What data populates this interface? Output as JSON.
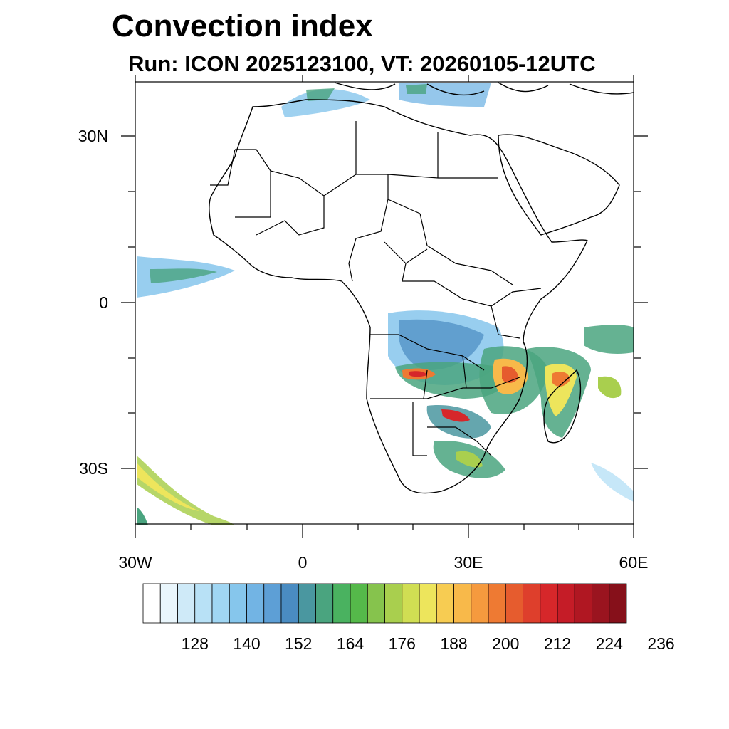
{
  "title": "Convection index",
  "subtitle": "Run: ICON 2025123100,  VT: 20260105-12UTC",
  "map": {
    "lon_range": [
      -30,
      60
    ],
    "lat_range": [
      -40,
      40
    ],
    "x_ticks": [
      {
        "lon": -30,
        "label": "30W"
      },
      {
        "lon": 0,
        "label": "0"
      },
      {
        "lon": 30,
        "label": "30E"
      },
      {
        "lon": 60,
        "label": "60E"
      }
    ],
    "y_ticks": [
      {
        "lat": 30,
        "label": "30N"
      },
      {
        "lat": 0,
        "label": "0"
      },
      {
        "lat": -30,
        "label": "30S"
      }
    ]
  },
  "colorbar": {
    "colors": [
      "#ffffff",
      "#eaf6fc",
      "#cfeaf8",
      "#b8e1f6",
      "#a0d6f3",
      "#86c6ec",
      "#72b4e4",
      "#5d9fd6",
      "#4a8cc2",
      "#4a97a0",
      "#4aa47f",
      "#4ab260",
      "#55b94a",
      "#86c34d",
      "#a9cf4e",
      "#d0de53",
      "#ede55c",
      "#f7cc52",
      "#f8b94a",
      "#f59a3e",
      "#ee7a33",
      "#e65c2e",
      "#de3f2c",
      "#d6272a",
      "#c51c27",
      "#b01722",
      "#9a141f",
      "#86101a"
    ],
    "labels": [
      "128",
      "140",
      "152",
      "164",
      "176",
      "188",
      "200",
      "212",
      "224",
      "236"
    ]
  }
}
